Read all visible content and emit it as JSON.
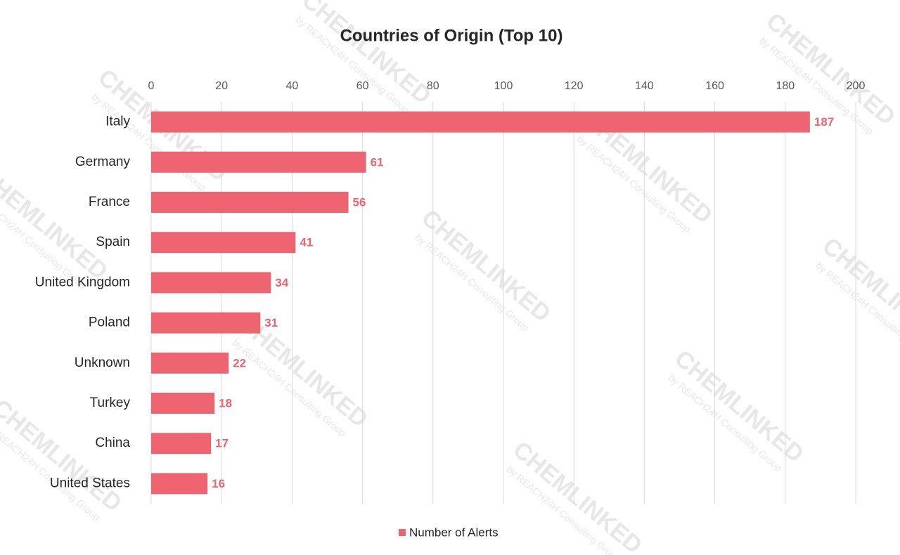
{
  "chart_data": {
    "type": "hbar",
    "title": "Countries of Origin (Top 10)",
    "categories": [
      "Italy",
      "Germany",
      "France",
      "Spain",
      "United Kingdom",
      "Poland",
      "Unknown",
      "Turkey",
      "China",
      "United States"
    ],
    "series": [
      {
        "name": "Number of Alerts",
        "color": "#ee6470",
        "values": [
          187,
          61,
          56,
          41,
          34,
          31,
          22,
          18,
          17,
          16
        ]
      }
    ],
    "xlim": [
      0,
      200
    ],
    "xticks": [
      0,
      20,
      40,
      60,
      80,
      100,
      120,
      140,
      160,
      180,
      200
    ],
    "grid": true,
    "legend": "bottom"
  },
  "watermark": {
    "brand": "CHEMLINKED",
    "tagline": "by REACH24H Consulting Group"
  }
}
